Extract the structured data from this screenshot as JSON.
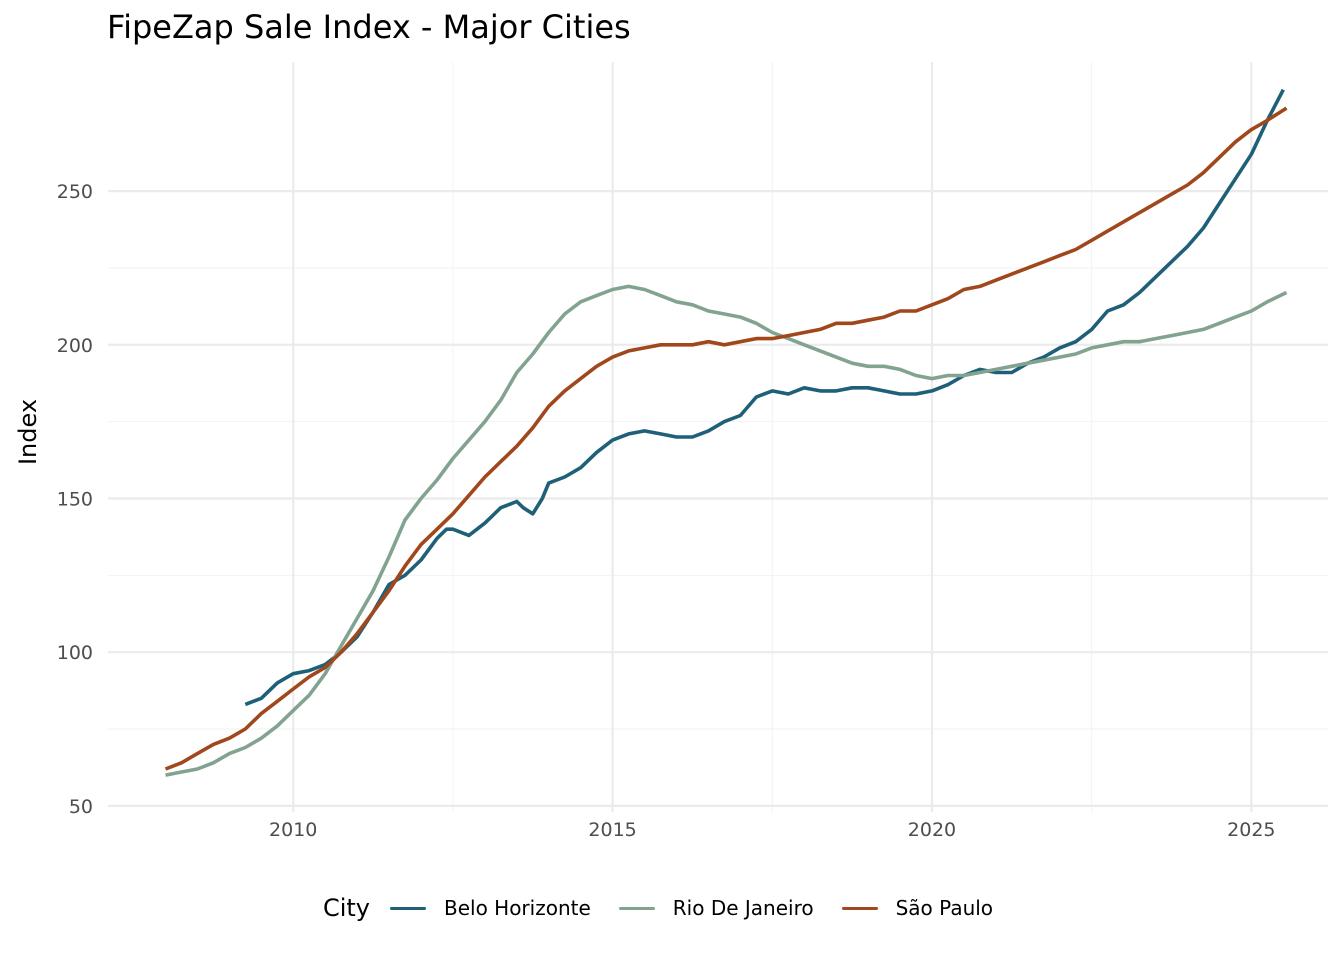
{
  "chart_data": {
    "type": "line",
    "title": "FipeZap Sale Index - Major Cities",
    "xlabel": "",
    "ylabel": "Index",
    "x_ticks": [
      2010,
      2015,
      2020,
      2025
    ],
    "y_ticks": [
      50,
      100,
      150,
      200,
      250
    ],
    "xlim": [
      2007.1,
      2026.2
    ],
    "ylim": [
      48,
      292
    ],
    "grid": true,
    "legend_position": "bottom",
    "legend_title": "City",
    "series": [
      {
        "name": "Belo Horizonte",
        "color": "#1f6079",
        "points": [
          [
            2009.25,
            83
          ],
          [
            2009.5,
            85
          ],
          [
            2009.75,
            90
          ],
          [
            2010.0,
            93
          ],
          [
            2010.25,
            94
          ],
          [
            2010.5,
            96
          ],
          [
            2010.75,
            100
          ],
          [
            2011.0,
            105
          ],
          [
            2011.25,
            113
          ],
          [
            2011.5,
            122
          ],
          [
            2011.75,
            125
          ],
          [
            2012.0,
            130
          ],
          [
            2012.25,
            137
          ],
          [
            2012.4,
            140
          ],
          [
            2012.5,
            140
          ],
          [
            2012.75,
            138
          ],
          [
            2013.0,
            142
          ],
          [
            2013.25,
            147
          ],
          [
            2013.5,
            149
          ],
          [
            2013.6,
            147
          ],
          [
            2013.75,
            145
          ],
          [
            2013.9,
            150
          ],
          [
            2014.0,
            155
          ],
          [
            2014.25,
            157
          ],
          [
            2014.5,
            160
          ],
          [
            2014.75,
            165
          ],
          [
            2015.0,
            169
          ],
          [
            2015.25,
            171
          ],
          [
            2015.5,
            172
          ],
          [
            2015.75,
            171
          ],
          [
            2016.0,
            170
          ],
          [
            2016.25,
            170
          ],
          [
            2016.5,
            172
          ],
          [
            2016.75,
            175
          ],
          [
            2017.0,
            177
          ],
          [
            2017.25,
            183
          ],
          [
            2017.5,
            185
          ],
          [
            2017.75,
            184
          ],
          [
            2018.0,
            186
          ],
          [
            2018.25,
            185
          ],
          [
            2018.5,
            185
          ],
          [
            2018.75,
            186
          ],
          [
            2019.0,
            186
          ],
          [
            2019.25,
            185
          ],
          [
            2019.5,
            184
          ],
          [
            2019.75,
            184
          ],
          [
            2020.0,
            185
          ],
          [
            2020.25,
            187
          ],
          [
            2020.5,
            190
          ],
          [
            2020.75,
            192
          ],
          [
            2021.0,
            191
          ],
          [
            2021.25,
            191
          ],
          [
            2021.5,
            194
          ],
          [
            2021.75,
            196
          ],
          [
            2022.0,
            199
          ],
          [
            2022.25,
            201
          ],
          [
            2022.5,
            205
          ],
          [
            2022.75,
            211
          ],
          [
            2023.0,
            213
          ],
          [
            2023.25,
            217
          ],
          [
            2023.5,
            222
          ],
          [
            2023.75,
            227
          ],
          [
            2024.0,
            232
          ],
          [
            2024.25,
            238
          ],
          [
            2024.5,
            246
          ],
          [
            2024.75,
            254
          ],
          [
            2025.0,
            262
          ],
          [
            2025.25,
            273
          ],
          [
            2025.5,
            283
          ]
        ]
      },
      {
        "name": "Rio De Janeiro",
        "color": "#82a38f",
        "points": [
          [
            2008.0,
            60
          ],
          [
            2008.25,
            61
          ],
          [
            2008.5,
            62
          ],
          [
            2008.75,
            64
          ],
          [
            2009.0,
            67
          ],
          [
            2009.25,
            69
          ],
          [
            2009.5,
            72
          ],
          [
            2009.75,
            76
          ],
          [
            2010.0,
            81
          ],
          [
            2010.25,
            86
          ],
          [
            2010.5,
            93
          ],
          [
            2010.75,
            102
          ],
          [
            2011.0,
            111
          ],
          [
            2011.25,
            120
          ],
          [
            2011.5,
            131
          ],
          [
            2011.75,
            143
          ],
          [
            2012.0,
            150
          ],
          [
            2012.25,
            156
          ],
          [
            2012.5,
            163
          ],
          [
            2012.75,
            169
          ],
          [
            2013.0,
            175
          ],
          [
            2013.25,
            182
          ],
          [
            2013.5,
            191
          ],
          [
            2013.75,
            197
          ],
          [
            2014.0,
            204
          ],
          [
            2014.25,
            210
          ],
          [
            2014.5,
            214
          ],
          [
            2014.75,
            216
          ],
          [
            2015.0,
            218
          ],
          [
            2015.25,
            219
          ],
          [
            2015.5,
            218
          ],
          [
            2015.75,
            216
          ],
          [
            2016.0,
            214
          ],
          [
            2016.25,
            213
          ],
          [
            2016.5,
            211
          ],
          [
            2016.75,
            210
          ],
          [
            2017.0,
            209
          ],
          [
            2017.25,
            207
          ],
          [
            2017.5,
            204
          ],
          [
            2017.75,
            202
          ],
          [
            2018.0,
            200
          ],
          [
            2018.25,
            198
          ],
          [
            2018.5,
            196
          ],
          [
            2018.75,
            194
          ],
          [
            2019.0,
            193
          ],
          [
            2019.25,
            193
          ],
          [
            2019.5,
            192
          ],
          [
            2019.75,
            190
          ],
          [
            2020.0,
            189
          ],
          [
            2020.25,
            190
          ],
          [
            2020.5,
            190
          ],
          [
            2020.75,
            191
          ],
          [
            2021.0,
            192
          ],
          [
            2021.25,
            193
          ],
          [
            2021.5,
            194
          ],
          [
            2021.75,
            195
          ],
          [
            2022.0,
            196
          ],
          [
            2022.25,
            197
          ],
          [
            2022.5,
            199
          ],
          [
            2022.75,
            200
          ],
          [
            2023.0,
            201
          ],
          [
            2023.25,
            201
          ],
          [
            2023.5,
            202
          ],
          [
            2023.75,
            203
          ],
          [
            2024.0,
            204
          ],
          [
            2024.25,
            205
          ],
          [
            2024.5,
            207
          ],
          [
            2024.75,
            209
          ],
          [
            2025.0,
            211
          ],
          [
            2025.25,
            214
          ],
          [
            2025.55,
            217
          ]
        ]
      },
      {
        "name": "São Paulo",
        "color": "#a0471c",
        "points": [
          [
            2008.0,
            62
          ],
          [
            2008.25,
            64
          ],
          [
            2008.5,
            67
          ],
          [
            2008.75,
            70
          ],
          [
            2009.0,
            72
          ],
          [
            2009.25,
            75
          ],
          [
            2009.5,
            80
          ],
          [
            2009.75,
            84
          ],
          [
            2010.0,
            88
          ],
          [
            2010.25,
            92
          ],
          [
            2010.5,
            95
          ],
          [
            2010.75,
            100
          ],
          [
            2011.0,
            106
          ],
          [
            2011.25,
            113
          ],
          [
            2011.5,
            120
          ],
          [
            2011.75,
            128
          ],
          [
            2012.0,
            135
          ],
          [
            2012.25,
            140
          ],
          [
            2012.5,
            145
          ],
          [
            2012.75,
            151
          ],
          [
            2013.0,
            157
          ],
          [
            2013.25,
            162
          ],
          [
            2013.5,
            167
          ],
          [
            2013.75,
            173
          ],
          [
            2014.0,
            180
          ],
          [
            2014.25,
            185
          ],
          [
            2014.5,
            189
          ],
          [
            2014.75,
            193
          ],
          [
            2015.0,
            196
          ],
          [
            2015.25,
            198
          ],
          [
            2015.5,
            199
          ],
          [
            2015.75,
            200
          ],
          [
            2016.0,
            200
          ],
          [
            2016.25,
            200
          ],
          [
            2016.5,
            201
          ],
          [
            2016.75,
            200
          ],
          [
            2017.0,
            201
          ],
          [
            2017.25,
            202
          ],
          [
            2017.5,
            202
          ],
          [
            2017.75,
            203
          ],
          [
            2018.0,
            204
          ],
          [
            2018.25,
            205
          ],
          [
            2018.5,
            207
          ],
          [
            2018.75,
            207
          ],
          [
            2019.0,
            208
          ],
          [
            2019.25,
            209
          ],
          [
            2019.5,
            211
          ],
          [
            2019.75,
            211
          ],
          [
            2020.0,
            213
          ],
          [
            2020.25,
            215
          ],
          [
            2020.5,
            218
          ],
          [
            2020.75,
            219
          ],
          [
            2021.0,
            221
          ],
          [
            2021.25,
            223
          ],
          [
            2021.5,
            225
          ],
          [
            2021.75,
            227
          ],
          [
            2022.0,
            229
          ],
          [
            2022.25,
            231
          ],
          [
            2022.5,
            234
          ],
          [
            2022.75,
            237
          ],
          [
            2023.0,
            240
          ],
          [
            2023.25,
            243
          ],
          [
            2023.5,
            246
          ],
          [
            2023.75,
            249
          ],
          [
            2024.0,
            252
          ],
          [
            2024.25,
            256
          ],
          [
            2024.5,
            261
          ],
          [
            2024.75,
            266
          ],
          [
            2025.0,
            270
          ],
          [
            2025.25,
            273
          ],
          [
            2025.55,
            277
          ]
        ]
      }
    ]
  }
}
